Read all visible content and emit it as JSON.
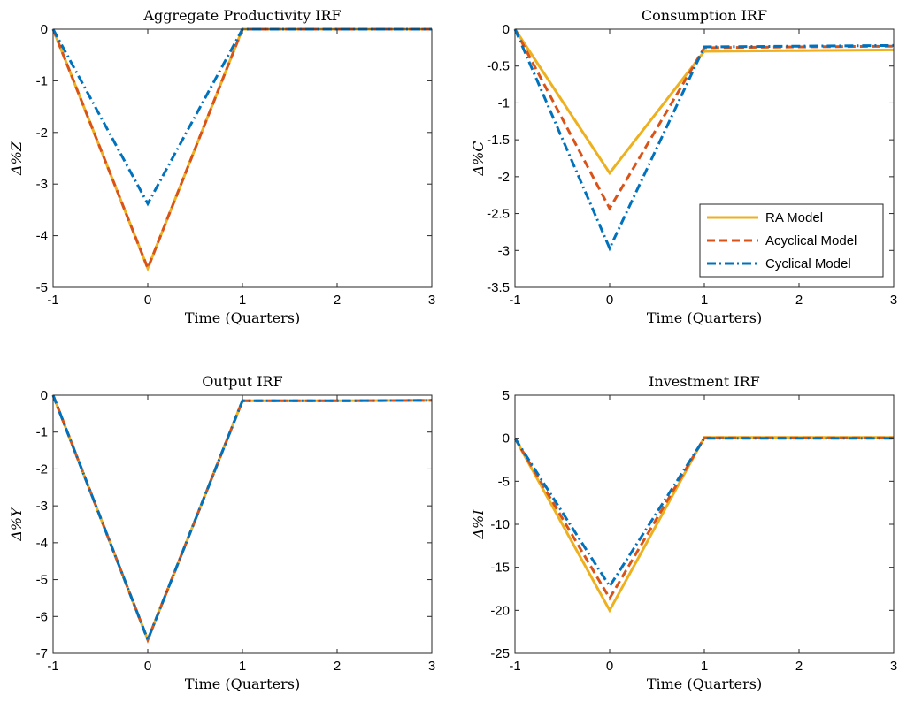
{
  "series_styles": [
    {
      "name": "RA Model",
      "color": "#EDB120",
      "dash": "",
      "width": 3
    },
    {
      "name": "Acyclical Model",
      "color": "#D95319",
      "dash": "9,5",
      "width": 3
    },
    {
      "name": "Cyclical Model",
      "color": "#0072BD",
      "dash": "10,4,2,4",
      "width": 3
    }
  ],
  "chart_data": [
    {
      "type": "line",
      "title": "Aggregate Productivity IRF",
      "xlabel": "Time (Quarters)",
      "ylabel": "Δ%Z",
      "xlim": [
        -1,
        3
      ],
      "ylim": [
        -5,
        0
      ],
      "xticks": [
        -1,
        0,
        1,
        2,
        3
      ],
      "yticks": [
        -5,
        -4,
        -3,
        -2,
        -1,
        0
      ],
      "x": [
        -1,
        0,
        1,
        2,
        3
      ],
      "series": [
        {
          "name": "RA Model",
          "values": [
            0,
            -4.63,
            0,
            0,
            0
          ]
        },
        {
          "name": "Acyclical Model",
          "values": [
            0,
            -4.63,
            0,
            0,
            0
          ]
        },
        {
          "name": "Cyclical Model",
          "values": [
            0,
            -3.38,
            0,
            0,
            0
          ]
        }
      ],
      "legend": false
    },
    {
      "type": "line",
      "title": "Consumption IRF",
      "xlabel": "Time (Quarters)",
      "ylabel": "Δ%C",
      "xlim": [
        -1,
        3
      ],
      "ylim": [
        -3.5,
        0
      ],
      "xticks": [
        -1,
        0,
        1,
        2,
        3
      ],
      "yticks": [
        -3.5,
        -3,
        -2.5,
        -2,
        -1.5,
        -1,
        -0.5,
        0
      ],
      "x": [
        -1,
        0,
        1,
        2,
        3
      ],
      "series": [
        {
          "name": "RA Model",
          "values": [
            0,
            -1.95,
            -0.3,
            -0.29,
            -0.28
          ]
        },
        {
          "name": "Acyclical Model",
          "values": [
            0,
            -2.43,
            -0.25,
            -0.24,
            -0.23
          ]
        },
        {
          "name": "Cyclical Model",
          "values": [
            0,
            -2.97,
            -0.24,
            -0.23,
            -0.22
          ]
        }
      ],
      "legend": true,
      "legend_position": "bottom-right"
    },
    {
      "type": "line",
      "title": "Output IRF",
      "xlabel": "Time (Quarters)",
      "ylabel": "Δ%Y",
      "xlim": [
        -1,
        3
      ],
      "ylim": [
        -7,
        0
      ],
      "xticks": [
        -1,
        0,
        1,
        2,
        3
      ],
      "yticks": [
        -7,
        -6,
        -5,
        -4,
        -3,
        -2,
        -1,
        0
      ],
      "x": [
        -1,
        0,
        1,
        2,
        3
      ],
      "series": [
        {
          "name": "RA Model",
          "values": [
            0,
            -6.63,
            -0.15,
            -0.15,
            -0.14
          ]
        },
        {
          "name": "Acyclical Model",
          "values": [
            0,
            -6.63,
            -0.15,
            -0.15,
            -0.14
          ]
        },
        {
          "name": "Cyclical Model",
          "values": [
            0,
            -6.63,
            -0.15,
            -0.15,
            -0.14
          ]
        }
      ],
      "legend": false
    },
    {
      "type": "line",
      "title": "Investment IRF",
      "xlabel": "Time (Quarters)",
      "ylabel": "Δ%I",
      "xlim": [
        -1,
        3
      ],
      "ylim": [
        -25,
        5
      ],
      "xticks": [
        -1,
        0,
        1,
        2,
        3
      ],
      "yticks": [
        -25,
        -20,
        -15,
        -10,
        -5,
        0,
        5
      ],
      "x": [
        -1,
        0,
        1,
        2,
        3
      ],
      "series": [
        {
          "name": "RA Model",
          "values": [
            0,
            -20.0,
            0.1,
            0.1,
            0.1
          ]
        },
        {
          "name": "Acyclical Model",
          "values": [
            0,
            -18.6,
            0.05,
            0.05,
            0.05
          ]
        },
        {
          "name": "Cyclical Model",
          "values": [
            0,
            -17.2,
            0.0,
            0.0,
            0.0
          ]
        }
      ],
      "legend": false
    }
  ]
}
